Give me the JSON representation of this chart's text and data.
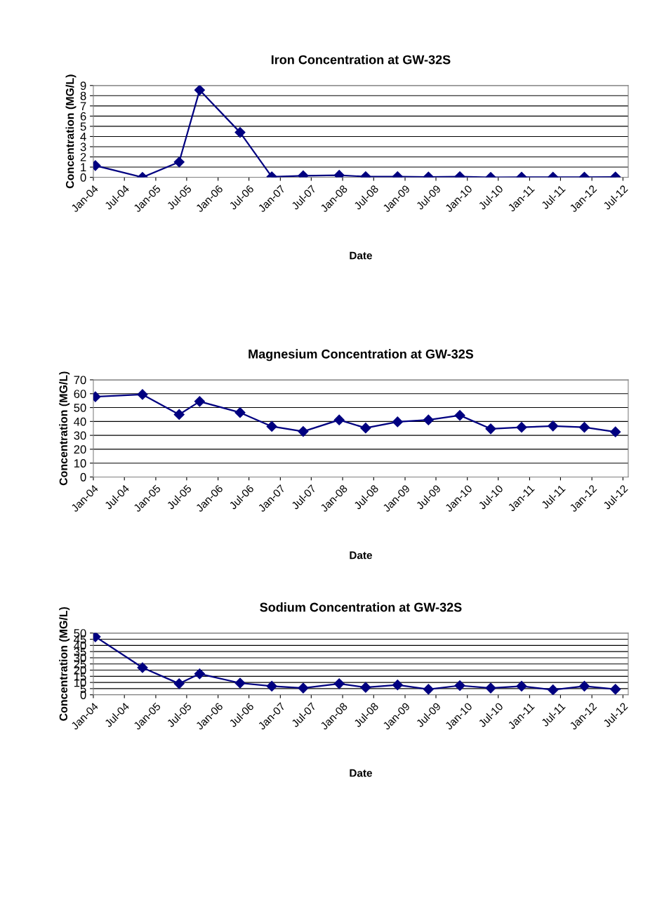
{
  "chart_data": [
    {
      "type": "line",
      "title": "Iron Concentration at GW-32S",
      "xlabel": "Date",
      "ylabel": "Concentration (MG/L)",
      "x": [
        "2004-01-13",
        "2004-10-15",
        "2005-05-18",
        "2005-09-15",
        "2006-05-10",
        "2006-11-12",
        "2007-05-15",
        "2007-12-12",
        "2008-05-15",
        "2008-11-18",
        "2009-05-18",
        "2009-11-18",
        "2010-05-18",
        "2010-11-15",
        "2011-05-18",
        "2011-11-18",
        "2012-05-18"
      ],
      "series": [
        {
          "color": "#000080",
          "values": [
            1.15,
            0,
            1.5,
            8.55,
            4.4,
            0.05,
            0.15,
            0.2,
            0.07,
            0.07,
            0.03,
            0.07,
            0,
            0.02,
            0.02,
            0.02,
            0.03
          ]
        }
      ],
      "xlim": [
        "2004-01-01",
        "2012-08-01"
      ],
      "xticks": [
        {
          "value": "2004-01-01",
          "label": "Jan-04"
        },
        {
          "value": "2004-07-01",
          "label": "Jul-04"
        },
        {
          "value": "2005-01-01",
          "label": "Jan-05"
        },
        {
          "value": "2005-07-01",
          "label": "Jul-05"
        },
        {
          "value": "2006-01-01",
          "label": "Jan-06"
        },
        {
          "value": "2006-07-01",
          "label": "Jul-06"
        },
        {
          "value": "2007-01-01",
          "label": "Jan-07"
        },
        {
          "value": "2007-07-01",
          "label": "Jul-07"
        },
        {
          "value": "2008-01-01",
          "label": "Jan-08"
        },
        {
          "value": "2008-07-01",
          "label": "Jul-08"
        },
        {
          "value": "2009-01-01",
          "label": "Jan-09"
        },
        {
          "value": "2009-07-01",
          "label": "Jul-09"
        },
        {
          "value": "2010-01-01",
          "label": "Jan-10"
        },
        {
          "value": "2010-07-01",
          "label": "Jul-10"
        },
        {
          "value": "2011-01-01",
          "label": "Jan-11"
        },
        {
          "value": "2011-07-01",
          "label": "Jul-11"
        },
        {
          "value": "2012-01-01",
          "label": "Jan-12"
        },
        {
          "value": "2012-07-01",
          "label": "Jul-12"
        }
      ],
      "ylim": [
        0,
        9
      ],
      "yticks": [
        0,
        1,
        2,
        3,
        4,
        5,
        6,
        7,
        8,
        9
      ],
      "grid": "y",
      "legend": false,
      "marker": "diamond",
      "line_style": "solid"
    },
    {
      "type": "line",
      "title": "Magnesium Concentration at GW-32S",
      "xlabel": "Date",
      "ylabel": "Concentration (MG/L)",
      "x": [
        "2004-01-13",
        "2004-10-15",
        "2005-05-18",
        "2005-09-15",
        "2006-05-10",
        "2006-11-12",
        "2007-05-15",
        "2007-12-12",
        "2008-05-15",
        "2008-11-18",
        "2009-05-18",
        "2009-11-18",
        "2010-05-18",
        "2010-11-15",
        "2011-05-18",
        "2011-11-18",
        "2012-05-18"
      ],
      "series": [
        {
          "color": "#000080",
          "values": [
            57.8,
            59.4,
            45,
            54.4,
            46.4,
            36.4,
            32.8,
            41.1,
            35.3,
            39.7,
            41.1,
            44.4,
            34.7,
            35.8,
            36.7,
            35.8,
            32.5
          ]
        }
      ],
      "xlim": [
        "2004-01-01",
        "2012-08-01"
      ],
      "xticks": [
        {
          "value": "2004-01-01",
          "label": "Jan-04"
        },
        {
          "value": "2004-07-01",
          "label": "Jul-04"
        },
        {
          "value": "2005-01-01",
          "label": "Jan-05"
        },
        {
          "value": "2005-07-01",
          "label": "Jul-05"
        },
        {
          "value": "2006-01-01",
          "label": "Jan-06"
        },
        {
          "value": "2006-07-01",
          "label": "Jul-06"
        },
        {
          "value": "2007-01-01",
          "label": "Jan-07"
        },
        {
          "value": "2007-07-01",
          "label": "Jul-07"
        },
        {
          "value": "2008-01-01",
          "label": "Jan-08"
        },
        {
          "value": "2008-07-01",
          "label": "Jul-08"
        },
        {
          "value": "2009-01-01",
          "label": "Jan-09"
        },
        {
          "value": "2009-07-01",
          "label": "Jul-09"
        },
        {
          "value": "2010-01-01",
          "label": "Jan-10"
        },
        {
          "value": "2010-07-01",
          "label": "Jul-10"
        },
        {
          "value": "2011-01-01",
          "label": "Jan-11"
        },
        {
          "value": "2011-07-01",
          "label": "Jul-11"
        },
        {
          "value": "2012-01-01",
          "label": "Jan-12"
        },
        {
          "value": "2012-07-01",
          "label": "Jul-12"
        }
      ],
      "ylim": [
        0,
        70
      ],
      "yticks": [
        0,
        10,
        20,
        30,
        40,
        50,
        60,
        70
      ],
      "grid": "y",
      "legend": false,
      "marker": "diamond",
      "line_style": "solid"
    },
    {
      "type": "line",
      "title": "Sodium Concentration at GW-32S",
      "xlabel": "Date",
      "ylabel": "Concentration (MG/L)",
      "x": [
        "2004-01-13",
        "2004-10-15",
        "2005-05-18",
        "2005-09-15",
        "2006-05-10",
        "2006-11-12",
        "2007-05-15",
        "2007-12-12",
        "2008-05-15",
        "2008-11-18",
        "2009-05-18",
        "2009-11-18",
        "2010-05-18",
        "2010-11-15",
        "2011-05-18",
        "2011-11-18",
        "2012-05-18"
      ],
      "series": [
        {
          "color": "#000080",
          "values": [
            47,
            22,
            9,
            17,
            9.5,
            7,
            5.5,
            9,
            6,
            8,
            4.5,
            7.5,
            5.5,
            7,
            4,
            7,
            4.5
          ]
        }
      ],
      "xlim": [
        "2004-01-01",
        "2012-08-01"
      ],
      "xticks": [
        {
          "value": "2004-01-01",
          "label": "Jan-04"
        },
        {
          "value": "2004-07-01",
          "label": "Jul-04"
        },
        {
          "value": "2005-01-01",
          "label": "Jan-05"
        },
        {
          "value": "2005-07-01",
          "label": "Jul-05"
        },
        {
          "value": "2006-01-01",
          "label": "Jan-06"
        },
        {
          "value": "2006-07-01",
          "label": "Jul-06"
        },
        {
          "value": "2007-01-01",
          "label": "Jan-07"
        },
        {
          "value": "2007-07-01",
          "label": "Jul-07"
        },
        {
          "value": "2008-01-01",
          "label": "Jan-08"
        },
        {
          "value": "2008-07-01",
          "label": "Jul-08"
        },
        {
          "value": "2009-01-01",
          "label": "Jan-09"
        },
        {
          "value": "2009-07-01",
          "label": "Jul-09"
        },
        {
          "value": "2010-01-01",
          "label": "Jan-10"
        },
        {
          "value": "2010-07-01",
          "label": "Jul-10"
        },
        {
          "value": "2011-01-01",
          "label": "Jan-11"
        },
        {
          "value": "2011-07-01",
          "label": "Jul-11"
        },
        {
          "value": "2012-01-01",
          "label": "Jan-12"
        },
        {
          "value": "2012-07-01",
          "label": "Jul-12"
        }
      ],
      "ylim": [
        0,
        50
      ],
      "yticks": [
        0,
        5,
        10,
        15,
        20,
        25,
        30,
        35,
        40,
        45,
        50
      ],
      "grid": "y",
      "legend": false,
      "marker": "diamond",
      "line_style": "solid"
    }
  ]
}
